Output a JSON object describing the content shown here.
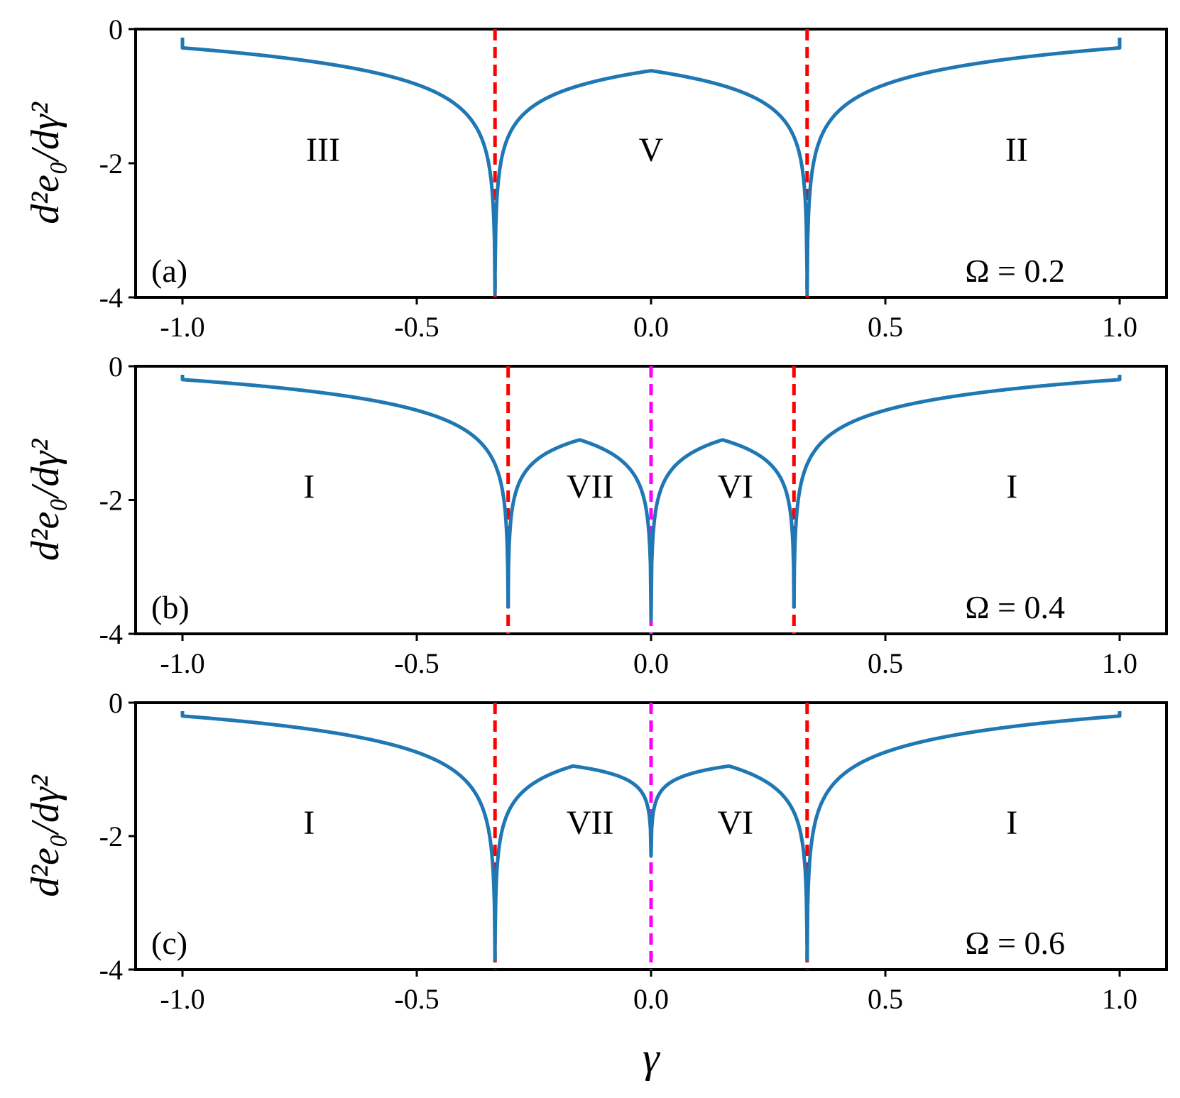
{
  "chart_data": {
    "type": "line",
    "xlabel": "γ",
    "colors": {
      "curve": "#1f77b4",
      "critical_line": "#ff0000",
      "center_line": "#ff00ff",
      "axes": "#000000"
    },
    "panels": [
      {
        "tag": "(a)",
        "omega_label": "Ω = 0.2",
        "ylabel": "d²e₀/dγ²",
        "xlim": [
          -1.1,
          1.1
        ],
        "ylim": [
          -4.0,
          0.0
        ],
        "xticks": [
          -1.0,
          -0.5,
          0.0,
          0.5,
          1.0
        ],
        "xtick_labels": [
          "-1.0",
          "-0.5",
          "0.0",
          "0.5",
          "1.0"
        ],
        "yticks": [
          0,
          -2,
          -4
        ],
        "ytick_labels": [
          "0",
          "-2",
          "-4"
        ],
        "series": [
          {
            "name": "d2e0",
            "critical_points": [
              -0.333,
              0.333
            ],
            "center_dip": null,
            "plateau": -0.62,
            "edge_value": -0.28,
            "dip_min": -3.95
          }
        ],
        "vlines": [
          {
            "x": -0.333,
            "style": "critical"
          },
          {
            "x": 0.333,
            "style": "critical"
          }
        ],
        "regions": [
          {
            "label": "III",
            "x": -0.7,
            "y": -1.8
          },
          {
            "label": "V",
            "x": 0.0,
            "y": -1.8
          },
          {
            "label": "II",
            "x": 0.78,
            "y": -1.8
          }
        ]
      },
      {
        "tag": "(b)",
        "omega_label": "Ω = 0.4",
        "ylabel": "d²e₀/dγ²",
        "xlim": [
          -1.1,
          1.1
        ],
        "ylim": [
          -4.0,
          0.0
        ],
        "xticks": [
          -1.0,
          -0.5,
          0.0,
          0.5,
          1.0
        ],
        "xtick_labels": [
          "-1.0",
          "-0.5",
          "0.0",
          "0.5",
          "1.0"
        ],
        "yticks": [
          0,
          -2,
          -4
        ],
        "ytick_labels": [
          "0",
          "-2",
          "-4"
        ],
        "series": [
          {
            "name": "d2e0",
            "critical_points": [
              -0.305,
              0.305
            ],
            "center_dip": -3.8,
            "plateau": -1.1,
            "edge_value": -0.2,
            "dip_min": -3.6
          }
        ],
        "vlines": [
          {
            "x": -0.305,
            "style": "critical"
          },
          {
            "x": 0.0,
            "style": "center"
          },
          {
            "x": 0.305,
            "style": "critical"
          }
        ],
        "regions": [
          {
            "label": "I",
            "x": -0.73,
            "y": -1.8
          },
          {
            "label": "VII",
            "x": -0.13,
            "y": -1.8
          },
          {
            "label": "VI",
            "x": 0.18,
            "y": -1.8
          },
          {
            "label": "I",
            "x": 0.77,
            "y": -1.8
          }
        ]
      },
      {
        "tag": "(c)",
        "omega_label": "Ω = 0.6",
        "ylabel": "d²e₀/dγ²",
        "xlim": [
          -1.1,
          1.1
        ],
        "ylim": [
          -4.0,
          0.0
        ],
        "xticks": [
          -1.0,
          -0.5,
          0.0,
          0.5,
          1.0
        ],
        "xtick_labels": [
          "-1.0",
          "-0.5",
          "0.0",
          "0.5",
          "1.0"
        ],
        "yticks": [
          0,
          -2,
          -4
        ],
        "ytick_labels": [
          "0",
          "-2",
          "-4"
        ],
        "series": [
          {
            "name": "d2e0",
            "critical_points": [
              -0.333,
              0.333
            ],
            "center_dip": -2.3,
            "plateau": -0.95,
            "edge_value": -0.2,
            "dip_min": -3.85
          }
        ],
        "vlines": [
          {
            "x": -0.333,
            "style": "critical"
          },
          {
            "x": 0.0,
            "style": "center"
          },
          {
            "x": 0.333,
            "style": "critical"
          }
        ],
        "regions": [
          {
            "label": "I",
            "x": -0.73,
            "y": -1.8
          },
          {
            "label": "VII",
            "x": -0.13,
            "y": -1.8
          },
          {
            "label": "VI",
            "x": 0.18,
            "y": -1.8
          },
          {
            "label": "I",
            "x": 0.77,
            "y": -1.8
          }
        ]
      }
    ]
  }
}
